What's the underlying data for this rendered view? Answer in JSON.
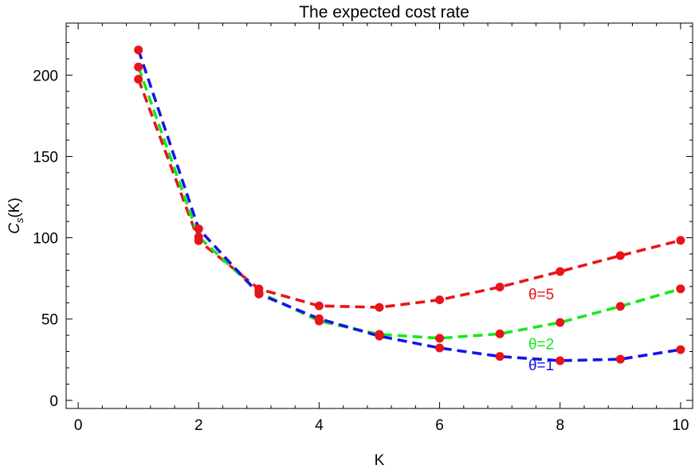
{
  "chart_data": {
    "type": "line",
    "title": "The expected cost rate",
    "xlabel": "K",
    "ylabel": {
      "main": "C",
      "sub": "s",
      "rest": "(K)"
    },
    "xlim": [
      -0.2,
      10.2
    ],
    "ylim": [
      -5,
      232
    ],
    "x_ticks": [
      0,
      2,
      4,
      6,
      8,
      10
    ],
    "y_ticks": [
      0,
      50,
      100,
      150,
      200
    ],
    "grid": false,
    "point_color": "#e8141b",
    "series": [
      {
        "label": "θ=5",
        "color": "#e8141b",
        "x": [
          1,
          2,
          3,
          4,
          5,
          6,
          7,
          8,
          9,
          10
        ],
        "y": [
          197.5,
          98.2,
          68.5,
          58.1,
          57.2,
          61.8,
          69.7,
          79.2,
          89.0,
          98.4
        ]
      },
      {
        "label": "θ=2",
        "color": "#14e81b",
        "x": [
          1,
          2,
          3,
          4,
          5,
          6,
          7,
          8,
          9,
          10
        ],
        "y": [
          205.0,
          100.5,
          66.5,
          48.8,
          40.6,
          38.2,
          40.9,
          47.9,
          57.8,
          68.6
        ]
      },
      {
        "label": "θ=1",
        "color": "#1414e8",
        "x": [
          1,
          2,
          3,
          4,
          5,
          6,
          7,
          8,
          9,
          10
        ],
        "y": [
          215.5,
          105.5,
          65.4,
          50.2,
          39.5,
          32.2,
          27.0,
          24.4,
          25.3,
          31.2
        ]
      }
    ],
    "annotations": [
      {
        "series": 0,
        "x": 7.9,
        "y": 62.0
      },
      {
        "series": 1,
        "x": 7.9,
        "y": 31.5
      },
      {
        "series": 2,
        "x": 7.9,
        "y": 18.5
      }
    ]
  }
}
